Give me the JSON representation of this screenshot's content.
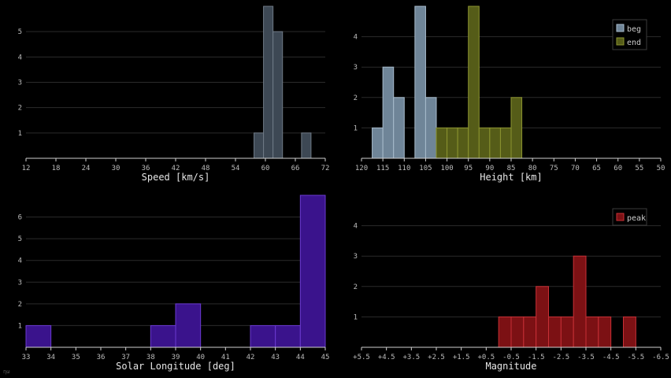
{
  "corner_mark": "ηω",
  "chart_data": [
    {
      "type": "bar",
      "xlabel": "Speed [km/s]",
      "xlim": [
        12,
        75
      ],
      "ylim": [
        0,
        6.0
      ],
      "xticks": [
        12,
        18,
        24,
        30,
        36,
        42,
        48,
        54,
        60,
        66,
        72
      ],
      "yticks": [
        1,
        2,
        3,
        4,
        5
      ],
      "bin_width": 2,
      "series": [
        {
          "color": "#3d4854",
          "edge": "#6f7a86",
          "bins": [
            [
              60,
              1
            ],
            [
              62,
              6
            ],
            [
              64,
              5
            ],
            [
              66,
              0
            ],
            [
              68,
              0
            ],
            [
              70,
              1
            ]
          ]
        }
      ]
    },
    {
      "type": "bar",
      "xlabel": "Height [km]",
      "xlim": [
        120,
        50
      ],
      "ylim": [
        0,
        5.0
      ],
      "xticks": [
        120,
        115,
        110,
        105,
        100,
        95,
        90,
        85,
        80,
        75,
        70,
        65,
        60,
        55,
        50
      ],
      "yticks": [
        1,
        2,
        3,
        4
      ],
      "bin_width": 2.5,
      "legend": "top-right",
      "series": [
        {
          "name": "beg",
          "color": "#6f8598",
          "edge": "#a8bccc",
          "bins": [
            [
              115,
              1
            ],
            [
              112.5,
              3
            ],
            [
              110,
              2
            ],
            [
              105,
              5
            ],
            [
              102.5,
              2
            ]
          ]
        },
        {
          "name": "end",
          "color": "#555c18",
          "edge": "#8c9430",
          "bins": [
            [
              100,
              1
            ],
            [
              97.5,
              1
            ],
            [
              95,
              1
            ],
            [
              92.5,
              5
            ],
            [
              90,
              1
            ],
            [
              87.5,
              1
            ],
            [
              85,
              1
            ],
            [
              82.5,
              2
            ]
          ]
        }
      ]
    },
    {
      "type": "bar",
      "xlabel": "Solar Longitude [deg]",
      "xlim": [
        33,
        45
      ],
      "ylim": [
        0,
        7.0
      ],
      "xticks": [
        33,
        34,
        35,
        36,
        37,
        38,
        39,
        40,
        41,
        42,
        43,
        44,
        45
      ],
      "yticks": [
        1,
        2,
        3,
        4,
        5,
        6
      ],
      "bin_width": 1,
      "series": [
        {
          "color": "#3a138c",
          "edge": "#6a3ad0",
          "bins": [
            [
              33,
              1
            ],
            [
              38,
              1
            ],
            [
              39,
              2
            ],
            [
              42,
              1
            ],
            [
              43,
              1
            ],
            [
              44,
              7
            ]
          ]
        }
      ]
    },
    {
      "type": "bar",
      "xlabel": "Magnitude",
      "xlim": [
        5.5,
        -6.5
      ],
      "ylim": [
        0,
        5.0
      ],
      "xticks": [
        "+5.5",
        "+4.5",
        "+3.5",
        "+2.5",
        "+1.5",
        "+0.5",
        "-0.5",
        "-1.5",
        "-2.5",
        "-3.5",
        "-4.5",
        "-5.5",
        "-6.5"
      ],
      "yticks": [
        1,
        2,
        3,
        4
      ],
      "bin_width": 0.5,
      "legend": "top-right",
      "series": [
        {
          "name": "peak",
          "color": "#7c1114",
          "edge": "#c83036",
          "bins": [
            [
              -0.5,
              1
            ],
            [
              -1.0,
              1
            ],
            [
              -1.5,
              1
            ],
            [
              -2.0,
              2
            ],
            [
              -2.5,
              1
            ],
            [
              -3.0,
              1
            ],
            [
              -3.5,
              3
            ],
            [
              -4.0,
              1
            ],
            [
              -4.5,
              1
            ],
            [
              -5.5,
              1
            ]
          ]
        }
      ]
    }
  ]
}
